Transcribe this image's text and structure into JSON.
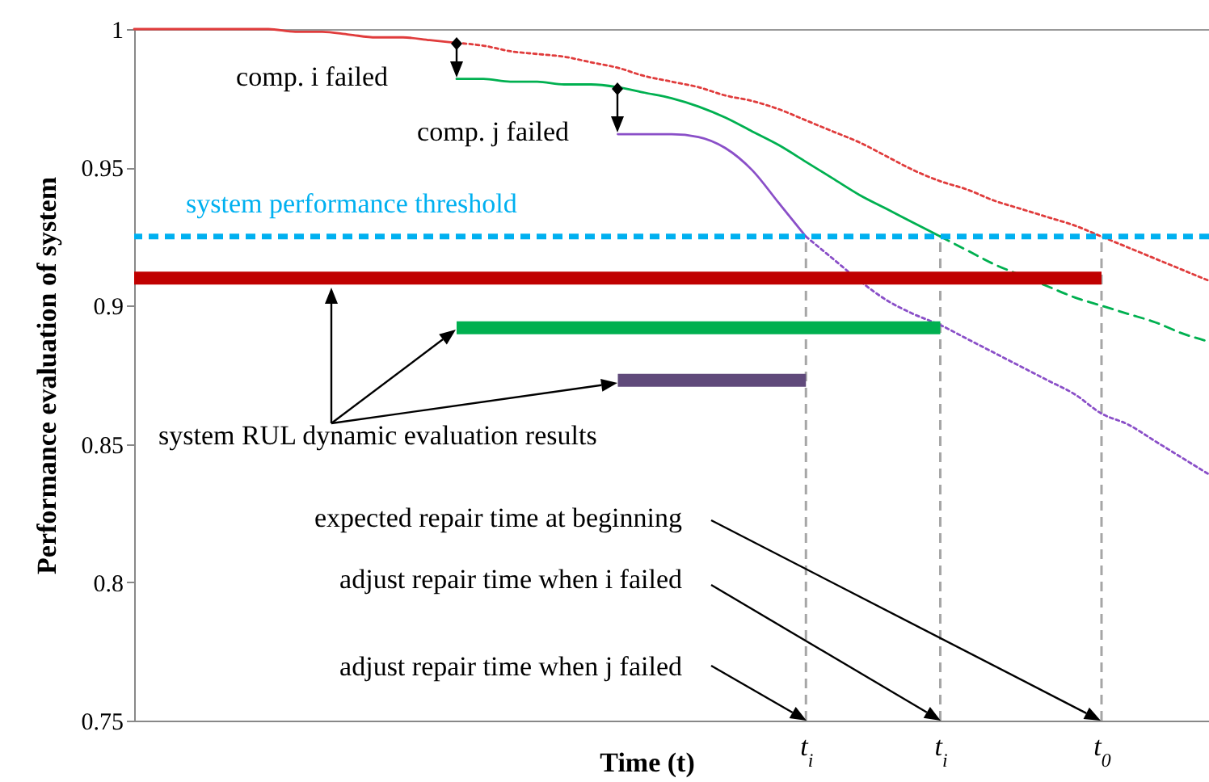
{
  "chart_data": {
    "type": "line",
    "xlabel": "Time (t)",
    "ylabel": "Performance evaluation of system",
    "categories": [
      null,
      null,
      null,
      null,
      null,
      null,
      null,
      null,
      null,
      null,
      null,
      null,
      null,
      null,
      null,
      null,
      null,
      null,
      null,
      null,
      null,
      null,
      null,
      null,
      null,
      "t$_{i}$",
      null,
      null,
      null,
      null,
      "t$_{i}$",
      null,
      null,
      null,
      null,
      null,
      "t$_{0}$",
      null,
      null,
      null,
      null
    ],
    "ylim": [
      0.75,
      1
    ],
    "yticks": [
      0.75,
      0.8,
      0.85,
      0.9,
      0.95,
      1
    ],
    "grid": "x",
    "series": [
      {
        "color": "#e03c3c",
        "line_style": "solid",
        "values": [
          1,
          1,
          1,
          1,
          1,
          1,
          0.999,
          0.999,
          0.998,
          0.997,
          0.997,
          0.996,
          0.995,
          null,
          null,
          null,
          null,
          null,
          null,
          null,
          null,
          null,
          null,
          null,
          null,
          null,
          null,
          null,
          null,
          null,
          null,
          null,
          null,
          null,
          null,
          null,
          null,
          null,
          null,
          null,
          null
        ]
      },
      {
        "color": "#e03c3c",
        "line_style": "dotted",
        "values": [
          null,
          null,
          null,
          null,
          null,
          null,
          null,
          null,
          null,
          null,
          null,
          null,
          0.995,
          0.994,
          0.992,
          0.991,
          0.99,
          0.988,
          0.986,
          0.983,
          0.981,
          0.979,
          0.976,
          0.974,
          0.971,
          0.967,
          0.963,
          0.959,
          0.954,
          0.949,
          0.945,
          0.942,
          0.938,
          0.935,
          0.932,
          0.929,
          0.925,
          0.921,
          0.917,
          0.913,
          0.909
        ]
      },
      {
        "color": "#00b050",
        "line_style": "solid",
        "values": [
          null,
          null,
          null,
          null,
          null,
          null,
          null,
          null,
          null,
          null,
          null,
          null,
          0.982,
          0.982,
          0.981,
          0.981,
          0.98,
          0.98,
          0.979,
          0.977,
          0.975,
          0.972,
          0.968,
          0.963,
          0.958,
          0.952,
          0.946,
          0.94,
          0.935,
          0.93,
          0.925,
          null,
          null,
          null,
          null,
          null,
          null,
          null,
          null,
          null,
          null
        ]
      },
      {
        "color": "#00b050",
        "line_style": "dashed",
        "values": [
          null,
          null,
          null,
          null,
          null,
          null,
          null,
          null,
          null,
          null,
          null,
          null,
          null,
          null,
          null,
          null,
          null,
          null,
          null,
          null,
          null,
          null,
          null,
          null,
          null,
          null,
          null,
          null,
          null,
          null,
          0.925,
          0.92,
          0.915,
          0.911,
          0.907,
          0.903,
          0.9,
          0.897,
          0.894,
          0.89,
          0.887
        ]
      },
      {
        "color": "#8a4fc8",
        "line_style": "solid",
        "values": [
          null,
          null,
          null,
          null,
          null,
          null,
          null,
          null,
          null,
          null,
          null,
          null,
          null,
          null,
          null,
          null,
          null,
          null,
          0.962,
          0.962,
          0.962,
          0.961,
          0.957,
          0.949,
          0.937,
          0.925,
          null,
          null,
          null,
          null,
          null,
          null,
          null,
          null,
          null,
          null,
          null,
          null,
          null,
          null,
          null
        ]
      },
      {
        "color": "#8a4fc8",
        "line_style": "dotted",
        "values": [
          null,
          null,
          null,
          null,
          null,
          null,
          null,
          null,
          null,
          null,
          null,
          null,
          null,
          null,
          null,
          null,
          null,
          null,
          null,
          null,
          null,
          null,
          null,
          null,
          null,
          0.925,
          0.917,
          0.909,
          0.902,
          0.897,
          0.893,
          0.888,
          0.883,
          0.878,
          0.873,
          0.868,
          0.861,
          0.857,
          0.851,
          0.845,
          0.839
        ]
      },
      {
        "color": "#c00000",
        "line_style": "solid",
        "values": [
          0.91,
          0.91,
          0.91,
          0.91,
          0.91,
          0.91,
          0.91,
          0.91,
          0.91,
          0.91,
          0.91,
          0.91,
          0.91,
          0.91,
          0.91,
          0.91,
          0.91,
          0.91,
          0.91,
          0.91,
          0.91,
          0.91,
          0.91,
          0.91,
          0.91,
          0.91,
          0.91,
          0.91,
          0.91,
          0.91,
          0.91,
          0.91,
          0.91,
          0.91,
          0.91,
          0.91,
          0.91,
          null,
          null,
          null,
          null
        ]
      },
      {
        "color": "#00b050",
        "line_style": "solid",
        "values": [
          null,
          null,
          null,
          null,
          null,
          null,
          null,
          null,
          null,
          null,
          null,
          null,
          0.892,
          0.892,
          0.892,
          0.892,
          0.892,
          0.892,
          0.892,
          0.892,
          0.892,
          0.892,
          0.892,
          0.892,
          0.892,
          0.892,
          0.892,
          0.892,
          0.892,
          0.892,
          0.892,
          null,
          null,
          null,
          null,
          null,
          null,
          null,
          null,
          null,
          null
        ]
      },
      {
        "color": "#604a7b",
        "line_style": "solid",
        "values": [
          null,
          null,
          null,
          null,
          null,
          null,
          null,
          null,
          null,
          null,
          null,
          null,
          null,
          null,
          null,
          null,
          null,
          null,
          0.873,
          0.873,
          0.873,
          0.873,
          0.873,
          0.873,
          0.873,
          0.873,
          null,
          null,
          null,
          null,
          null,
          null,
          null,
          null,
          null,
          null,
          null,
          null,
          null,
          null,
          null
        ]
      }
    ],
    "ref_lines": [
      {
        "axis": "y",
        "value": 0.925,
        "label": "system performance threshold",
        "color": "#00b0f0",
        "line_style": "dashed"
      }
    ],
    "annotations": [
      "comp. i failed",
      "comp. j failed",
      "system RUL dynamic evaluation results",
      "expected repair time at beginning",
      "adjust repair time when i failed",
      "adjust repair time when j failed"
    ]
  }
}
